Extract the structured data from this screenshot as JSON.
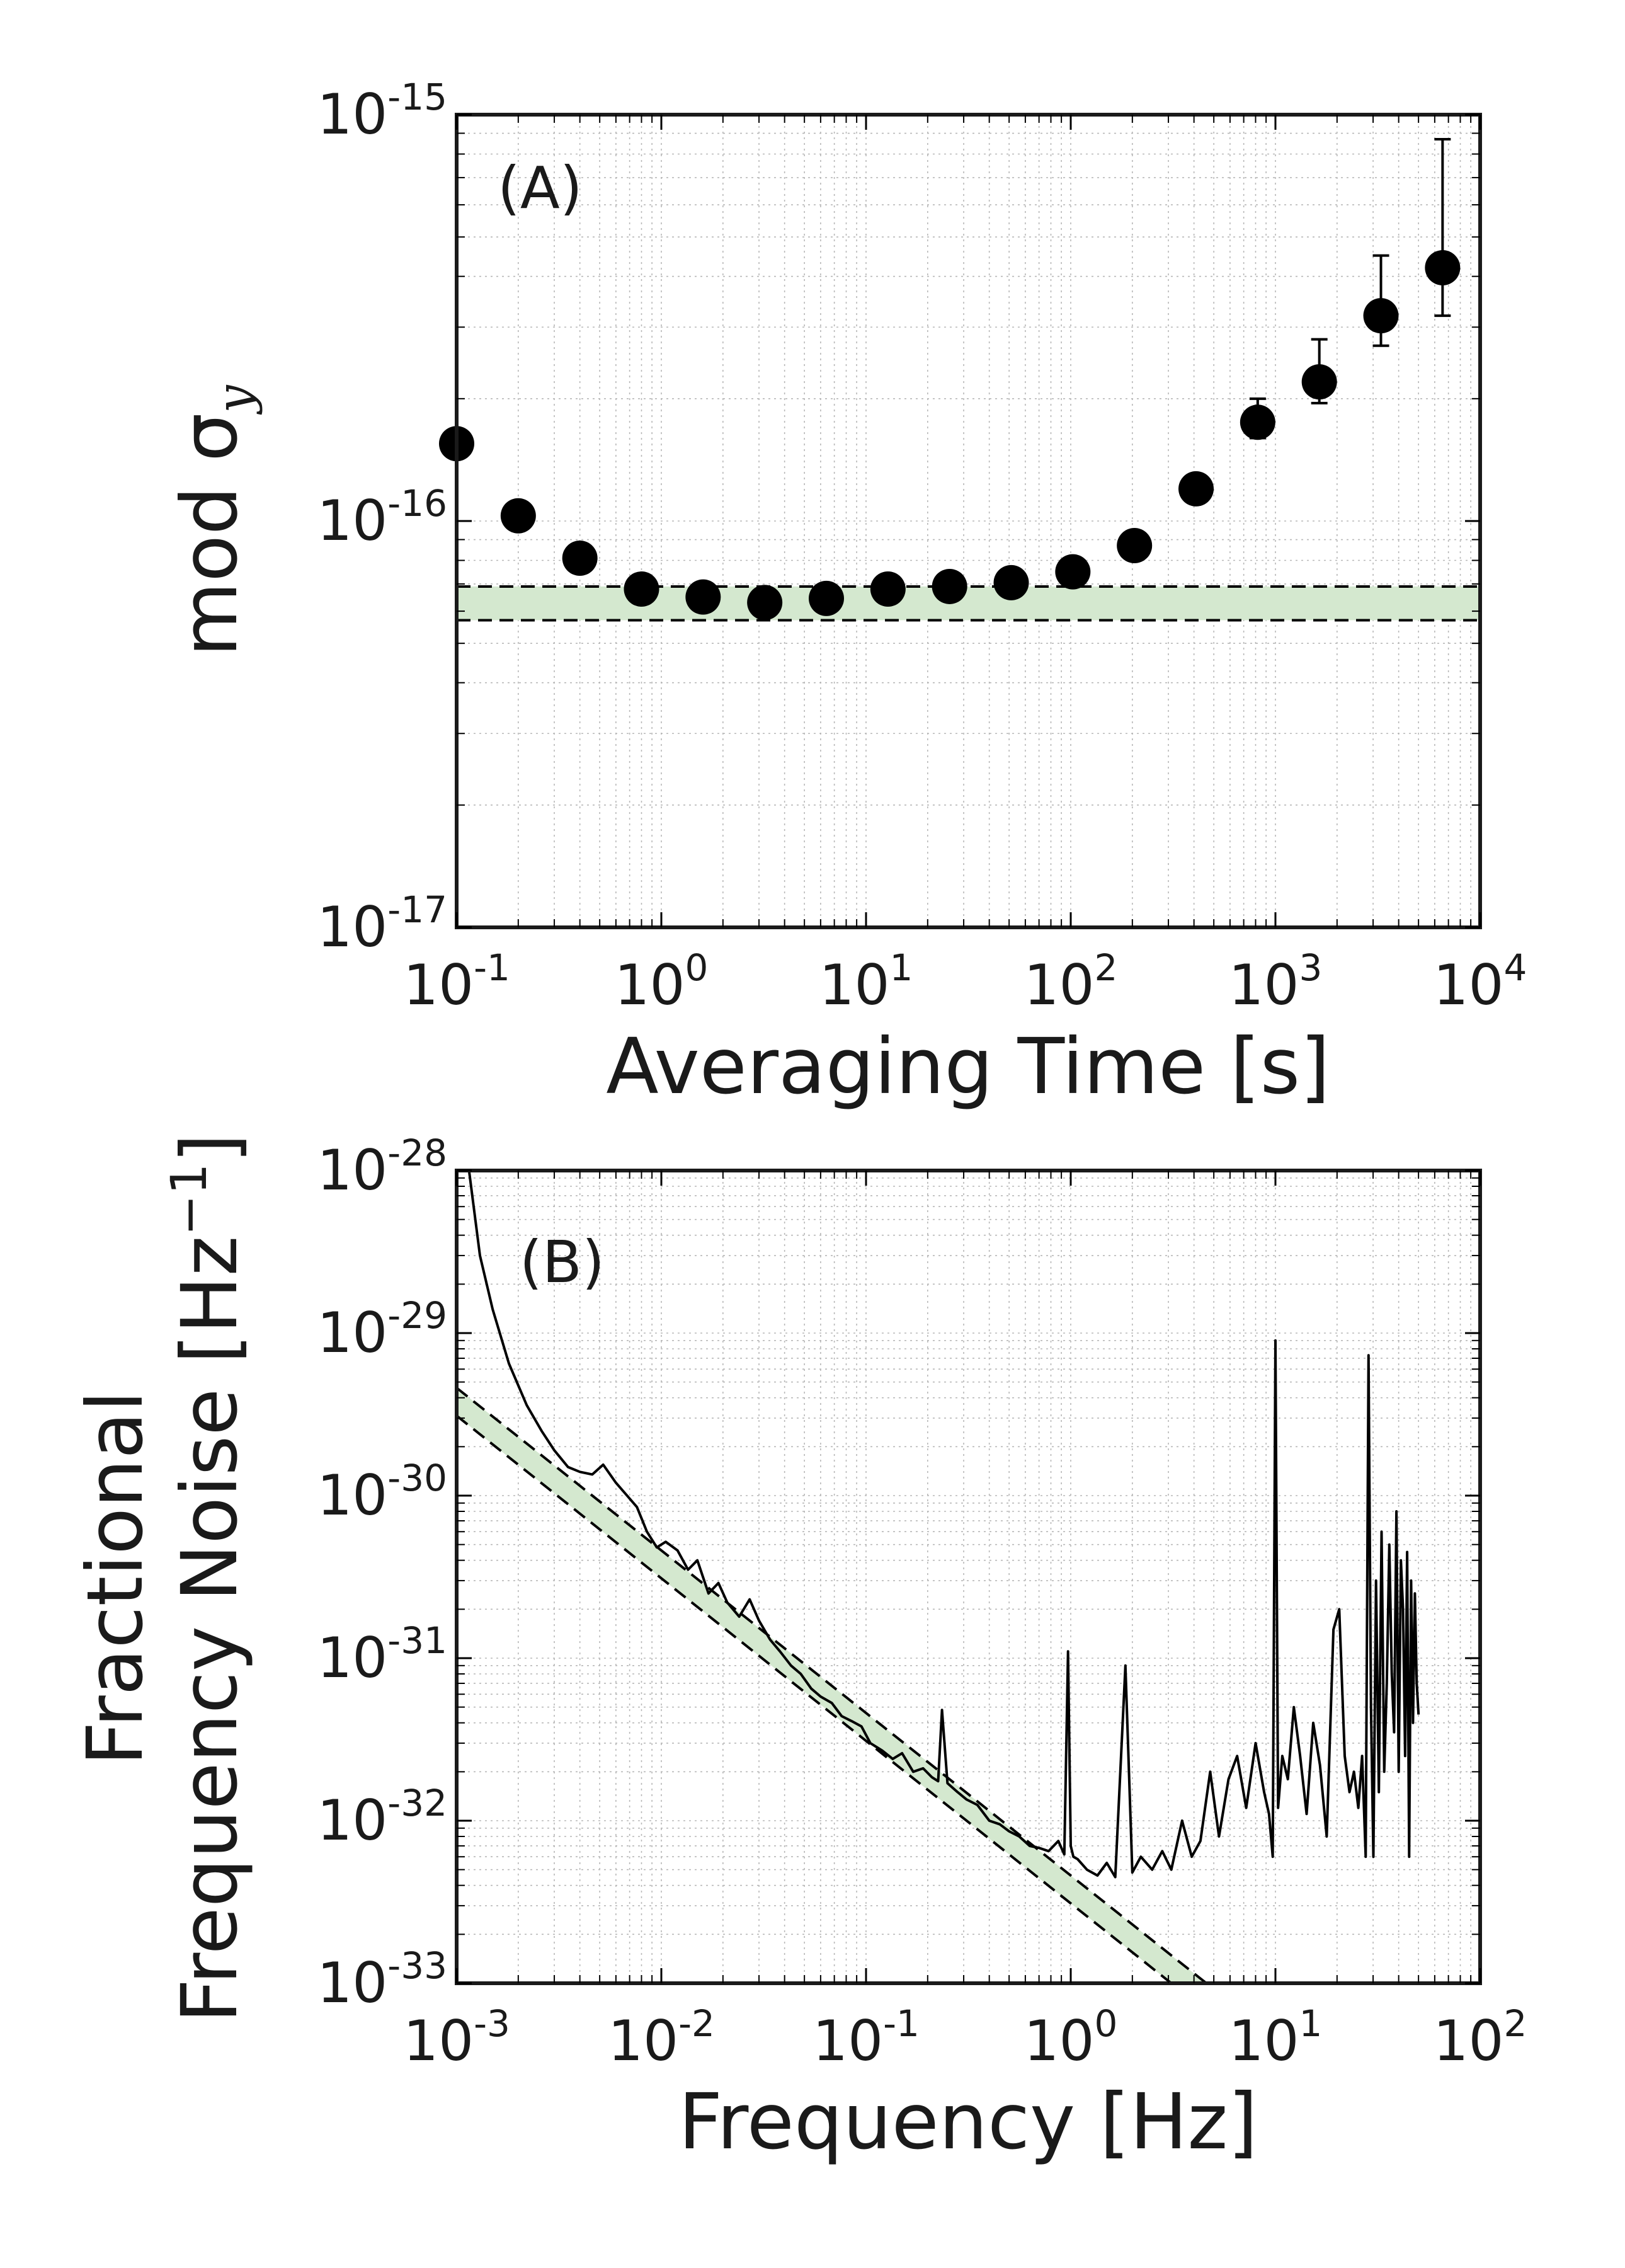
{
  "chart_data": [
    {
      "panel_label": "(A)",
      "type": "scatter",
      "x_scale": "log",
      "y_scale": "log",
      "xlim": [
        0.1,
        10000
      ],
      "ylim": [
        1e-17,
        1e-15
      ],
      "xlabel": "Averaging Time [s]",
      "ylabel": "mod σ",
      "ylabel_subscript": "y",
      "x_ticks": [
        {
          "base": "10",
          "exp": "-1"
        },
        {
          "base": "10",
          "exp": "0"
        },
        {
          "base": "10",
          "exp": "1"
        },
        {
          "base": "10",
          "exp": "2"
        },
        {
          "base": "10",
          "exp": "3"
        },
        {
          "base": "10",
          "exp": "4"
        }
      ],
      "y_ticks": [
        {
          "base": "10",
          "exp": "-17"
        },
        {
          "base": "10",
          "exp": "-16"
        },
        {
          "base": "10",
          "exp": "-15"
        }
      ],
      "band": {
        "y_low": 5.7e-17,
        "y_high": 6.9e-17,
        "color": "#d4e8cf",
        "style": "dashed-border"
      },
      "series": [
        {
          "name": "mod sigma_y",
          "color": "#000000",
          "points": [
            {
              "x": 0.1,
              "y": 1.55e-16
            },
            {
              "x": 0.2,
              "y": 1.03e-16
            },
            {
              "x": 0.4,
              "y": 8.1e-17
            },
            {
              "x": 0.8,
              "y": 6.8e-17
            },
            {
              "x": 1.6,
              "y": 6.5e-17
            },
            {
              "x": 3.2,
              "y": 6.3e-17
            },
            {
              "x": 6.4,
              "y": 6.45e-17
            },
            {
              "x": 12.8,
              "y": 6.8e-17
            },
            {
              "x": 25.6,
              "y": 6.9e-17
            },
            {
              "x": 51.2,
              "y": 7.05e-17
            },
            {
              "x": 102.4,
              "y": 7.5e-17
            },
            {
              "x": 204.8,
              "y": 8.7e-17
            },
            {
              "x": 409.6,
              "y": 1.2e-16
            },
            {
              "x": 819.2,
              "y": 1.75e-16,
              "err_low": 1.6e-16,
              "err_high": 2e-16
            },
            {
              "x": 1638.4,
              "y": 2.2e-16,
              "err_low": 1.95e-16,
              "err_high": 2.8e-16
            },
            {
              "x": 3276.8,
              "y": 3.2e-16,
              "err_low": 2.7e-16,
              "err_high": 4.5e-16
            },
            {
              "x": 6553.6,
              "y": 4.2e-16,
              "err_low": 3.2e-16,
              "err_high": 8.7e-16
            }
          ]
        }
      ]
    },
    {
      "panel_label": "(B)",
      "type": "line",
      "x_scale": "log",
      "y_scale": "log",
      "xlim": [
        0.001,
        100
      ],
      "ylim": [
        1e-33,
        1e-28
      ],
      "xlabel": "Frequency [Hz]",
      "ylabel_line1": "Fractional",
      "ylabel_line2": "Frequency Noise [Hz",
      "ylabel_unit_exp": "−1",
      "ylabel_close": "]",
      "x_ticks": [
        {
          "base": "10",
          "exp": "-3"
        },
        {
          "base": "10",
          "exp": "-2"
        },
        {
          "base": "10",
          "exp": "-1"
        },
        {
          "base": "10",
          "exp": "0"
        },
        {
          "base": "10",
          "exp": "1"
        },
        {
          "base": "10",
          "exp": "2"
        }
      ],
      "y_ticks": [
        {
          "base": "10",
          "exp": "-33"
        },
        {
          "base": "10",
          "exp": "-32"
        },
        {
          "base": "10",
          "exp": "-31"
        },
        {
          "base": "10",
          "exp": "-30"
        },
        {
          "base": "10",
          "exp": "-29"
        },
        {
          "base": "10",
          "exp": "-28"
        }
      ],
      "band": {
        "slope": -1,
        "coef_low": 3.1e-33,
        "coef_high": 4.6e-33,
        "x_from": 0.001,
        "x_to": 10,
        "color": "#d4e8cf",
        "style": "dashed-border"
      },
      "series": [
        {
          "name": "PSD",
          "color": "#000000",
          "x": [
            0.00115,
            0.0013,
            0.0015,
            0.0018,
            0.0022,
            0.0026,
            0.003,
            0.0035,
            0.004,
            0.0046,
            0.0052,
            0.006,
            0.0068,
            0.0076,
            0.0085,
            0.0095,
            0.0105,
            0.012,
            0.0135,
            0.015,
            0.017,
            0.019,
            0.021,
            0.024,
            0.027,
            0.03,
            0.034,
            0.038,
            0.043,
            0.048,
            0.054,
            0.06,
            0.068,
            0.076,
            0.085,
            0.095,
            0.105,
            0.12,
            0.135,
            0.15,
            0.17,
            0.19,
            0.21,
            0.225,
            0.235,
            0.25,
            0.28,
            0.31,
            0.35,
            0.4,
            0.45,
            0.5,
            0.56,
            0.63,
            0.7,
            0.78,
            0.87,
            0.93,
            0.97,
            1.0,
            1.03,
            1.08,
            1.2,
            1.35,
            1.5,
            1.65,
            1.85,
            2.0,
            2.2,
            2.5,
            2.8,
            3.1,
            3.5,
            3.9,
            4.3,
            4.8,
            5.3,
            5.9,
            6.5,
            7.2,
            8.0,
            8.8,
            9.3,
            9.7,
            10.0,
            10.3,
            10.8,
            11.5,
            12.3,
            13.2,
            14.2,
            15.3,
            16.5,
            17.8,
            19.2,
            20.5,
            21.8,
            23.0,
            24.2,
            25.4,
            26.5,
            27.6,
            28.5,
            29.3,
            30.1,
            31.0,
            32.0,
            33.0,
            34.0,
            35.0,
            36.0,
            37.0,
            38.0,
            39.0,
            40.0,
            41.0,
            42.0,
            43.0,
            44.0,
            45.0,
            46.0,
            47.0,
            48.0,
            49.0,
            50.0
          ],
          "y": [
            1e-28,
            3e-29,
            1.4e-29,
            6.5e-30,
            3.6e-30,
            2.5e-30,
            1.9e-30,
            1.5e-30,
            1.4e-30,
            1.35e-30,
            1.55e-30,
            1.2e-30,
            1e-30,
            8.5e-31,
            6e-31,
            4.8e-31,
            5.2e-31,
            4.6e-31,
            3.5e-31,
            4e-31,
            2.5e-31,
            2.9e-31,
            2.2e-31,
            1.8e-31,
            2.3e-31,
            1.7e-31,
            1.3e-31,
            1.1e-31,
            9e-32,
            8e-32,
            6.5e-32,
            5.8e-32,
            5.3e-32,
            4.4e-32,
            4.1e-32,
            3.8e-32,
            3e-32,
            2.7e-32,
            2.4e-32,
            2.6e-32,
            2e-32,
            2.1e-32,
            1.85e-32,
            1.75e-32,
            4.8e-32,
            1.7e-32,
            1.5e-32,
            1.35e-32,
            1.25e-32,
            1e-32,
            9.5e-33,
            8.6e-33,
            8e-33,
            7e-33,
            6.8e-33,
            6.5e-33,
            7.5e-33,
            6.2e-33,
            1.1e-31,
            7e-33,
            6e-33,
            5.8e-33,
            5e-33,
            4.6e-33,
            5.5e-33,
            4.5e-33,
            9e-32,
            4.8e-33,
            6e-33,
            5e-33,
            6.5e-33,
            5e-33,
            1e-32,
            6e-33,
            7.5e-33,
            2e-32,
            8e-33,
            1.8e-32,
            2.5e-32,
            1.2e-32,
            3e-32,
            1.5e-32,
            1.1e-32,
            6e-33,
            9e-30,
            1.2e-32,
            2.5e-32,
            1.8e-32,
            5e-32,
            2.5e-32,
            1.1e-32,
            4e-32,
            2.2e-32,
            8e-33,
            1.5e-31,
            2e-31,
            2.5e-32,
            1.5e-32,
            2e-32,
            1.2e-32,
            2.5e-32,
            6e-33,
            7.3e-30,
            5e-32,
            6e-33,
            3e-31,
            1.5e-32,
            6e-31,
            2e-32,
            7e-32,
            5e-31,
            8e-32,
            3.5e-32,
            8e-31,
            2e-32,
            4e-31,
            2e-31,
            2.5e-32,
            4.5e-31,
            6e-33,
            3e-31,
            4e-32,
            2.5e-31,
            7e-32,
            4.5e-32
          ]
        }
      ]
    }
  ]
}
